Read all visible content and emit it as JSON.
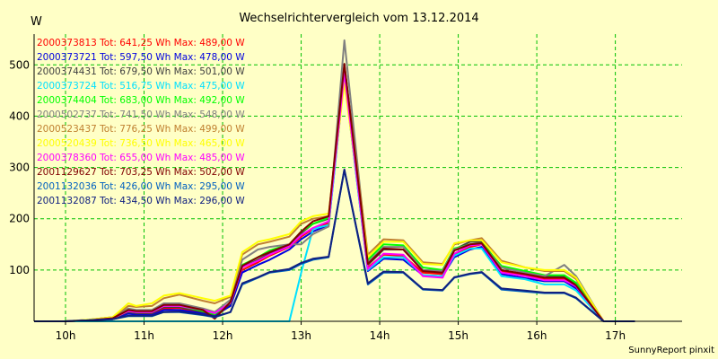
{
  "chart_data": {
    "type": "line",
    "title": "Wechselrichtervergleich vom 13.12.2014",
    "ylabel": "W",
    "credit": "SunnyReport pinxit",
    "ylim": [
      0,
      560
    ],
    "xlim": [
      9.6,
      17.85
    ],
    "yticks": [
      100,
      200,
      300,
      400,
      500
    ],
    "xticks": [
      10,
      11,
      12,
      13,
      14,
      15,
      16,
      17
    ],
    "xtick_labels": [
      "10h",
      "11h",
      "12h",
      "13h",
      "14h",
      "15h",
      "16h",
      "17h"
    ],
    "grid": true,
    "x": [
      9.6,
      10.0,
      10.3,
      10.6,
      10.8,
      10.9,
      11.1,
      11.25,
      11.45,
      11.75,
      11.9,
      12.1,
      12.25,
      12.45,
      12.6,
      12.85,
      13.0,
      13.15,
      13.35,
      13.55,
      13.85,
      14.05,
      14.3,
      14.55,
      14.8,
      14.95,
      15.15,
      15.3,
      15.55,
      15.85,
      16.1,
      16.35,
      16.5,
      16.85,
      17.25
    ],
    "series": [
      {
        "name": "2000373813",
        "label": "2000373813 Tot: 641,25 Wh Max: 489,00 W",
        "color": "#ff0000",
        "values": [
          0,
          0,
          2,
          5,
          18,
          15,
          14,
          25,
          26,
          16,
          12,
          34,
          100,
          115,
          128,
          145,
          165,
          180,
          192,
          489,
          105,
          130,
          128,
          95,
          92,
          130,
          145,
          150,
          98,
          90,
          82,
          82,
          68,
          0,
          0
        ]
      },
      {
        "name": "2000373721",
        "label": "2000373721 Tot: 597,50 Wh Max: 478,00 W",
        "color": "#0000e0",
        "values": [
          0,
          0,
          2,
          5,
          15,
          13,
          12,
          22,
          22,
          15,
          11,
          30,
          95,
          110,
          120,
          140,
          160,
          175,
          188,
          478,
          98,
          122,
          120,
          90,
          88,
          125,
          140,
          145,
          92,
          84,
          78,
          78,
          64,
          0,
          0
        ]
      },
      {
        "name": "2000374431",
        "label": "2000374431 Tot: 679,50 Wh Max: 501,00 W",
        "color": "#404040",
        "values": [
          0,
          0,
          2,
          6,
          18,
          16,
          16,
          28,
          28,
          18,
          13,
          34,
          105,
          120,
          132,
          148,
          172,
          190,
          200,
          501,
          110,
          140,
          140,
          100,
          98,
          140,
          155,
          155,
          105,
          95,
          88,
          88,
          72,
          0,
          0
        ]
      },
      {
        "name": "2000373724",
        "label": "2000373724 Tot: 516,75 Wh Max: 475,00 W",
        "color": "#00e0ff",
        "values": [
          0,
          0,
          0,
          0,
          0,
          0,
          0,
          0,
          0,
          0,
          0,
          0,
          0,
          0,
          0,
          0,
          95,
          180,
          188,
          475,
          100,
          125,
          125,
          90,
          88,
          128,
          142,
          142,
          88,
          82,
          72,
          72,
          60,
          0,
          0
        ]
      },
      {
        "name": "2000374404",
        "label": "2000374404 Tot: 683,00 Wh Max: 492,00 W",
        "color": "#00ff00",
        "values": [
          0,
          0,
          2,
          6,
          20,
          18,
          18,
          30,
          30,
          20,
          14,
          36,
          110,
          125,
          138,
          150,
          175,
          190,
          202,
          492,
          120,
          150,
          148,
          105,
          100,
          142,
          150,
          152,
          108,
          98,
          90,
          90,
          75,
          0,
          0
        ]
      },
      {
        "name": "2000502737",
        "label": "2000502737 Tot: 741,50 Wh Max: 548,00 W",
        "color": "#808080",
        "values": [
          0,
          0,
          3,
          8,
          25,
          22,
          22,
          35,
          35,
          25,
          18,
          42,
          120,
          140,
          145,
          150,
          150,
          170,
          185,
          548,
          115,
          145,
          145,
          100,
          98,
          140,
          150,
          150,
          105,
          95,
          88,
          110,
          88,
          0,
          0
        ]
      },
      {
        "name": "2000523437",
        "label": "2000523437 Tot: 776,25 Wh Max: 499,00 W",
        "color": "#c08030",
        "values": [
          0,
          0,
          3,
          8,
          30,
          28,
          30,
          45,
          52,
          40,
          35,
          48,
          130,
          150,
          155,
          165,
          190,
          200,
          205,
          499,
          130,
          160,
          158,
          115,
          112,
          150,
          158,
          162,
          118,
          105,
          98,
          98,
          82,
          0,
          0
        ]
      },
      {
        "name": "2000520439",
        "label": "2000520439 Tot: 736,50 Wh Max: 465,00 W",
        "color": "#ffff00",
        "values": [
          0,
          0,
          3,
          8,
          35,
          30,
          35,
          50,
          55,
          45,
          40,
          50,
          135,
          155,
          160,
          170,
          195,
          205,
          210,
          465,
          125,
          155,
          155,
          112,
          110,
          152,
          158,
          158,
          115,
          105,
          100,
          100,
          85,
          0,
          0
        ]
      },
      {
        "name": "2000378360",
        "label": "2000378360 Tot: 655,00 Wh Max: 485,00 W",
        "color": "#ff00ff",
        "values": [
          0,
          0,
          2,
          6,
          20,
          18,
          18,
          30,
          30,
          22,
          16,
          36,
          105,
          118,
          130,
          146,
          168,
          182,
          195,
          485,
          102,
          132,
          130,
          88,
          85,
          132,
          148,
          150,
          95,
          88,
          80,
          80,
          68,
          0,
          0
        ]
      },
      {
        "name": "2001129627",
        "label": "2001129627 Tot: 703,25 Wh Max: 502,00 W",
        "color": "#800000",
        "values": [
          0,
          0,
          2,
          6,
          22,
          20,
          20,
          32,
          32,
          22,
          5,
          38,
          108,
          125,
          135,
          150,
          175,
          195,
          205,
          502,
          112,
          142,
          140,
          98,
          95,
          138,
          150,
          152,
          100,
          92,
          85,
          85,
          70,
          0,
          0
        ]
      },
      {
        "name": "2001132036",
        "label": "2001132036 Tot: 426,00 Wh Max: 295,00 W",
        "color": "#0060c0",
        "values": [
          0,
          0,
          2,
          4,
          10,
          10,
          10,
          18,
          18,
          12,
          8,
          18,
          72,
          85,
          95,
          100,
          112,
          120,
          125,
          295,
          72,
          95,
          95,
          62,
          60,
          85,
          92,
          95,
          62,
          58,
          55,
          55,
          45,
          0,
          0
        ]
      },
      {
        "name": "2001132087",
        "label": "2001132087 Tot: 434,50 Wh Max: 296,00 W",
        "color": "#102080",
        "values": [
          0,
          0,
          2,
          4,
          11,
          11,
          11,
          18,
          19,
          13,
          9,
          18,
          74,
          86,
          96,
          102,
          114,
          122,
          126,
          296,
          74,
          97,
          96,
          63,
          61,
          86,
          93,
          96,
          64,
          60,
          56,
          56,
          46,
          0,
          0
        ]
      }
    ]
  }
}
